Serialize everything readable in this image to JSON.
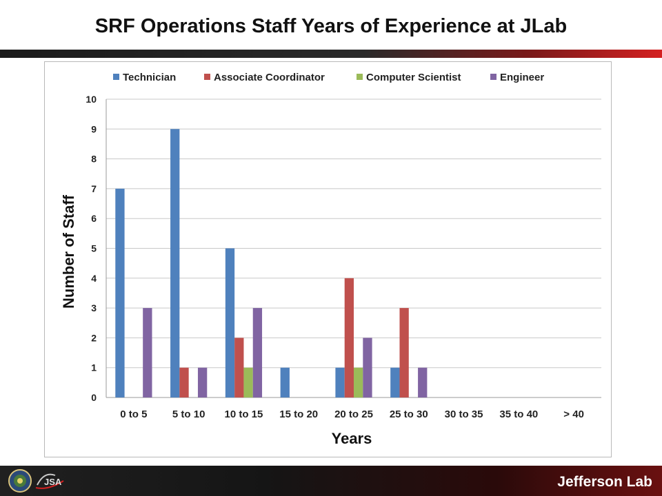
{
  "slide": {
    "title": "SRF Operations Staff Years of Experience at JLab",
    "footer_brand": "Jefferson Lab",
    "logos": [
      "doe-seal",
      "jsa-logo"
    ]
  },
  "chart_data": {
    "type": "bar",
    "title": "",
    "xlabel": "Years",
    "ylabel": "Number of Staff",
    "ylim": [
      0,
      10
    ],
    "yticks": [
      0,
      1,
      2,
      3,
      4,
      5,
      6,
      7,
      8,
      9,
      10
    ],
    "grid": true,
    "legend_position": "top",
    "categories": [
      "0 to 5",
      "5 to 10",
      "10 to 15",
      "15 to 20",
      "20 to 25",
      "25 to 30",
      "30 to 35",
      "35 to 40",
      "> 40"
    ],
    "series": [
      {
        "name": "Technician",
        "color": "#4f81bd",
        "values": [
          7,
          9,
          5,
          1,
          1,
          1,
          0,
          0,
          0
        ]
      },
      {
        "name": "Associate Coordinator",
        "color": "#c0504d",
        "values": [
          0,
          1,
          2,
          0,
          4,
          3,
          0,
          0,
          0
        ]
      },
      {
        "name": "Computer Scientist",
        "color": "#9bbb59",
        "values": [
          0,
          0,
          1,
          0,
          1,
          0,
          0,
          0,
          0
        ]
      },
      {
        "name": "Engineer",
        "color": "#8064a2",
        "values": [
          3,
          1,
          3,
          0,
          2,
          1,
          0,
          0,
          0
        ]
      }
    ]
  }
}
